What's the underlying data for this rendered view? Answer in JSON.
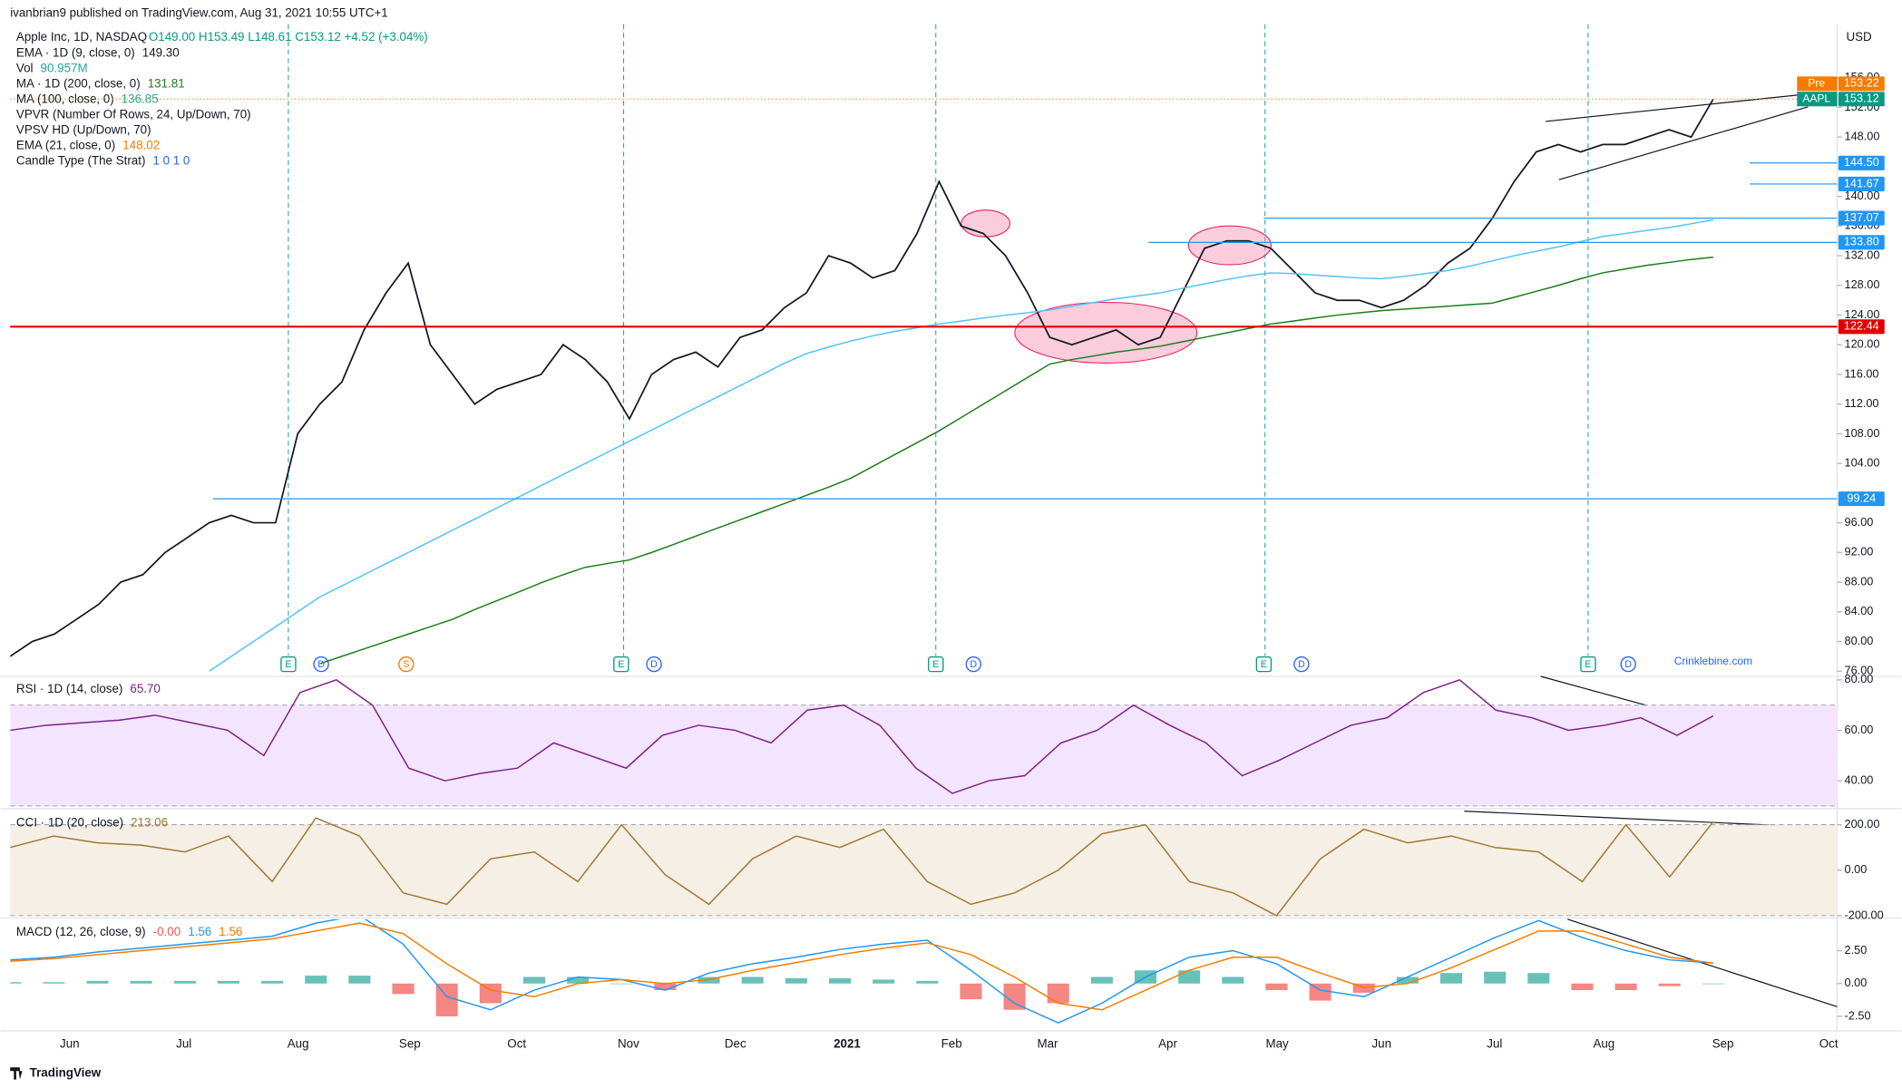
{
  "header": {
    "publisher": "ivanbrian9 published on TradingView.com, Aug 31, 2021 10:55 UTC+1",
    "symbol": "Apple Inc, 1D, NASDAQ",
    "ohlc": "O149.00 H153.49 L148.61 C153.12 +4.52 (+3.04%)"
  },
  "legend": [
    {
      "label": "EMA · 1D (9, close, 0)",
      "value": "149.30",
      "color": "#131722"
    },
    {
      "label": "Vol",
      "value": "90.957M",
      "color": "#26a69a"
    },
    {
      "label": "MA · 1D (200, close, 0)",
      "value": "131.81",
      "color": "#1b7e1b"
    },
    {
      "label": "MA (100, close, 0)",
      "value": "136.85",
      "color": "#26a69a"
    },
    {
      "label": "VPVR (Number Of Rows, 24, Up/Down, 70)"
    },
    {
      "label": "VPSV HD (Up/Down, 70)"
    },
    {
      "label": "EMA (21, close, 0)",
      "value": "148.02",
      "color": "#f57c00"
    },
    {
      "label": "Candle Type (The Strat)",
      "value": "1 0 1 0",
      "color": "#2962ff"
    }
  ],
  "currency": "USD",
  "watermark": "Crinklebine.com",
  "footer": "TradingView",
  "price_tags": [
    {
      "name": "Pre",
      "value": 153.22,
      "label": "153.22",
      "color": "#f57c00"
    },
    {
      "name": "AAPL",
      "value": 153.12,
      "label": "153.12",
      "color": "#089981"
    },
    {
      "value": 144.5,
      "label": "144.50",
      "color": "#2196f3"
    },
    {
      "value": 141.67,
      "label": "141.67",
      "color": "#2196f3"
    },
    {
      "value": 137.07,
      "label": "137.07",
      "color": "#2196f3"
    },
    {
      "value": 133.8,
      "label": "133.80",
      "color": "#2196f3"
    },
    {
      "value": 122.44,
      "label": "122.44",
      "color": "#e00000"
    },
    {
      "value": 99.24,
      "label": "99.24",
      "color": "#2196f3"
    }
  ],
  "events": [
    "E",
    "D",
    "S"
  ],
  "x_labels": [
    "Jun",
    "Jul",
    "Aug",
    "Sep",
    "Oct",
    "Nov",
    "Dec",
    "2021",
    "Feb",
    "Mar",
    "Apr",
    "May",
    "Jun",
    "Jul",
    "Aug",
    "Sep",
    "Oct"
  ],
  "chart_data": [
    {
      "type": "line",
      "grid": false,
      "ylim": [
        75.3,
        163.2
      ],
      "yticks": [
        {
          "value": 76,
          "label": "76.00"
        },
        {
          "value": 80,
          "label": "80.00"
        },
        {
          "value": 84,
          "label": "84.00"
        },
        {
          "value": 88,
          "label": "88.00"
        },
        {
          "value": 92,
          "label": "92.00"
        },
        {
          "value": 96,
          "label": "96.00"
        },
        {
          "value": 104,
          "label": "104.00"
        },
        {
          "value": 108,
          "label": "108.00"
        },
        {
          "value": 112,
          "label": "112.00"
        },
        {
          "value": 116,
          "label": "116.00"
        },
        {
          "value": 120,
          "label": "120.00"
        },
        {
          "value": 124,
          "label": "124.00"
        },
        {
          "value": 128,
          "label": "128.00"
        },
        {
          "value": 132,
          "label": "132.00"
        },
        {
          "value": 136,
          "label": "136.00"
        },
        {
          "value": 140,
          "label": "140.00"
        },
        {
          "value": 148,
          "label": "148.00"
        },
        {
          "value": 152,
          "label": "152.00"
        },
        {
          "value": 156,
          "label": "156.00"
        }
      ],
      "series": [
        {
          "name": "Close",
          "color": "#131722",
          "values": [
            78,
            80,
            81,
            83,
            85,
            88,
            89,
            92,
            94,
            96,
            97,
            96,
            96,
            108,
            112,
            115,
            122,
            127,
            131,
            120,
            116,
            112,
            114,
            115,
            116,
            120,
            118,
            115,
            110,
            116,
            118,
            119,
            117,
            121,
            122,
            125,
            127,
            132,
            131,
            129,
            130,
            135,
            142,
            136,
            135,
            132,
            127,
            121,
            120,
            121,
            122,
            120,
            121,
            127,
            133,
            134,
            134,
            133,
            130,
            127,
            126,
            126,
            125,
            126,
            128,
            131,
            133,
            137,
            142,
            146,
            147,
            146,
            147,
            147,
            148,
            149,
            148,
            153.12
          ]
        },
        {
          "name": "MA 100",
          "color": "#4fc3f7",
          "values": [
            null,
            null,
            null,
            null,
            null,
            null,
            null,
            null,
            null,
            76,
            78,
            80,
            82,
            84,
            86,
            87.5,
            89,
            90.5,
            92,
            93.5,
            95,
            96.5,
            98,
            99.5,
            101,
            102.5,
            104,
            105.5,
            107,
            108.5,
            110,
            111.5,
            113,
            114.5,
            116,
            117.5,
            118.8,
            119.7,
            120.5,
            121.2,
            121.8,
            122.3,
            122.8,
            123.2,
            123.6,
            124,
            124.3,
            124.7,
            125.2,
            125.7,
            126.2,
            126.6,
            127,
            127.6,
            128.2,
            128.8,
            129.3,
            129.7,
            129.6,
            129.4,
            129.2,
            129,
            128.9,
            129.2,
            129.6,
            130,
            130.6,
            131.3,
            132,
            132.6,
            133.2,
            133.9,
            134.6,
            135,
            135.4,
            135.8,
            136.3,
            136.85
          ]
        },
        {
          "name": "MA 200",
          "color": "#1b7e1b",
          "values": [
            null,
            null,
            null,
            null,
            null,
            null,
            null,
            null,
            null,
            null,
            null,
            null,
            null,
            null,
            77,
            78,
            79,
            80,
            81,
            82,
            83,
            84.3,
            85.5,
            86.7,
            87.9,
            89,
            90,
            90.5,
            91,
            92,
            93.1,
            94.2,
            95.3,
            96.4,
            97.5,
            98.6,
            99.7,
            100.8,
            102,
            103.6,
            105.2,
            106.8,
            108.4,
            110.2,
            112,
            113.8,
            115.6,
            117.4,
            118,
            118.5,
            119,
            119.4,
            119.8,
            120.4,
            121,
            121.6,
            122.2,
            122.8,
            123.2,
            123.6,
            124,
            124.3,
            124.6,
            124.8,
            125,
            125.2,
            125.4,
            125.6,
            126.4,
            127.2,
            128,
            128.9,
            129.7,
            130.2,
            130.7,
            131.1,
            131.5,
            131.81
          ]
        }
      ]
    },
    {
      "type": "line",
      "title": "RSI · 1D (14, close)",
      "value_label": "65.70",
      "ylim": [
        29.4,
        81.4
      ],
      "band": [
        30,
        70
      ],
      "band_color": "#f3e5ff",
      "yticks": [
        {
          "value": 80,
          "label": "80.00"
        },
        {
          "value": 60,
          "label": "60.00"
        },
        {
          "value": 40,
          "label": "40.00"
        }
      ],
      "series": [
        {
          "name": "RSI",
          "color": "#7e1f86",
          "values": [
            60,
            62,
            63,
            64,
            66,
            63,
            60,
            50,
            75,
            80,
            70,
            45,
            40,
            43,
            45,
            55,
            50,
            45,
            58,
            62,
            60,
            55,
            68,
            70,
            62,
            45,
            35,
            40,
            42,
            55,
            60,
            70,
            62,
            55,
            42,
            48,
            55,
            62,
            65,
            75,
            80,
            68,
            65,
            60,
            62,
            65,
            58,
            65.7
          ]
        }
      ]
    },
    {
      "type": "line",
      "title": "CCI · 1D (20, close)",
      "value_label": "213.06",
      "ylim": [
        -205,
        265
      ],
      "band": [
        -200,
        200
      ],
      "band_color": "#f5efe6",
      "yticks": [
        {
          "value": 200,
          "label": "200.00"
        },
        {
          "value": 0,
          "label": "0.00"
        },
        {
          "value": -200,
          "label": "-200.00"
        }
      ],
      "series": [
        {
          "name": "CCI",
          "color": "#a1772e",
          "values": [
            100,
            150,
            120,
            110,
            80,
            150,
            -50,
            230,
            150,
            -100,
            -150,
            50,
            80,
            -50,
            200,
            -20,
            -150,
            50,
            150,
            100,
            180,
            -50,
            -150,
            -100,
            0,
            160,
            200,
            -50,
            -100,
            -200,
            50,
            180,
            120,
            150,
            100,
            80,
            -50,
            200,
            -30,
            213.06
          ]
        }
      ]
    },
    {
      "type": "line",
      "title": "MACD (12, 26, close, 9)",
      "value_labels": [
        "-0.00",
        "1.56",
        "1.56"
      ],
      "value_colors": [
        "#ef5350",
        "#2196f3",
        "#f57c00"
      ],
      "ylim": [
        -3.52,
        4.9
      ],
      "yticks": [
        {
          "value": 2.5,
          "label": "2.50"
        },
        {
          "value": 0,
          "label": "0.00"
        },
        {
          "value": -2.5,
          "label": "-2.50"
        }
      ],
      "series": [
        {
          "name": "Histogram",
          "style": "histogram",
          "color": "#26a69a",
          "down_color": "#ef5350",
          "values": [
            0.1,
            0.1,
            0.2,
            0.2,
            0.2,
            0.2,
            0.2,
            0.6,
            0.6,
            -0.8,
            -2.5,
            -1.5,
            0.5,
            0.5,
            0,
            -0.5,
            0.5,
            0.5,
            0.4,
            0.4,
            0.3,
            0.2,
            -1.2,
            -2,
            -1.5,
            0.5,
            1,
            1,
            0.5,
            -0.5,
            -1.3,
            -0.7,
            0.5,
            0.8,
            0.9,
            0.8,
            -0.5,
            -0.5,
            -0.2,
            0
          ]
        },
        {
          "name": "MACD",
          "color": "#2196f3",
          "values": [
            1.8,
            2.0,
            2.4,
            2.7,
            3.0,
            3.3,
            3.6,
            4.6,
            5.2,
            3.0,
            -1.0,
            -2.0,
            -0.5,
            0.5,
            0.3,
            -0.5,
            0.8,
            1.5,
            2.0,
            2.6,
            3.0,
            3.3,
            1.0,
            -1.5,
            -3.0,
            -1.5,
            0.5,
            2.0,
            2.5,
            1.5,
            -0.5,
            -1.0,
            0.5,
            2.0,
            3.5,
            4.8,
            3.5,
            2.5,
            1.8,
            1.56
          ]
        },
        {
          "name": "Signal",
          "color": "#f57c00",
          "values": [
            1.7,
            1.9,
            2.2,
            2.5,
            2.8,
            3.1,
            3.4,
            4.0,
            4.6,
            3.8,
            1.5,
            -0.5,
            -1.0,
            0.0,
            0.3,
            0.0,
            0.3,
            1.0,
            1.6,
            2.2,
            2.7,
            3.1,
            2.2,
            0.5,
            -1.5,
            -2.0,
            -0.5,
            1.0,
            2.0,
            2.0,
            0.8,
            -0.3,
            0.0,
            1.2,
            2.6,
            4.0,
            4.0,
            3.0,
            2.0,
            1.56
          ]
        }
      ]
    }
  ]
}
